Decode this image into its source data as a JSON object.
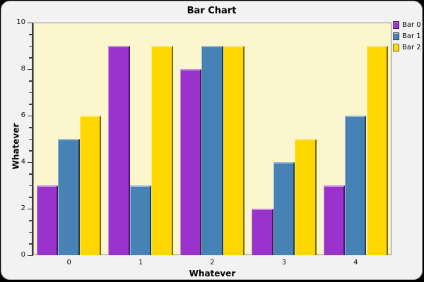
{
  "window": {
    "background": "#f2f2f2",
    "outer_background": "#000000"
  },
  "chart_data": {
    "type": "bar",
    "title": "Bar Chart",
    "xlabel": "Whatever",
    "ylabel": "Whatever",
    "categories": [
      "0",
      "1",
      "2",
      "3",
      "4"
    ],
    "series": [
      {
        "name": "Bar 0",
        "color": "#9933cc",
        "values": [
          3,
          9,
          8,
          2,
          3
        ]
      },
      {
        "name": "Bar 1",
        "color": "#4682b4",
        "values": [
          5,
          3,
          9,
          4,
          6
        ]
      },
      {
        "name": "Bar 2",
        "color": "#ffd700",
        "values": [
          6,
          9,
          9,
          5,
          9
        ]
      }
    ],
    "ylim": [
      0,
      10
    ],
    "y_major_ticks": [
      0,
      2,
      4,
      6,
      8,
      10
    ],
    "y_minor_step": 0.5,
    "plot_background": "#fcf6ce",
    "grid": false,
    "legend_position": "top-right"
  }
}
